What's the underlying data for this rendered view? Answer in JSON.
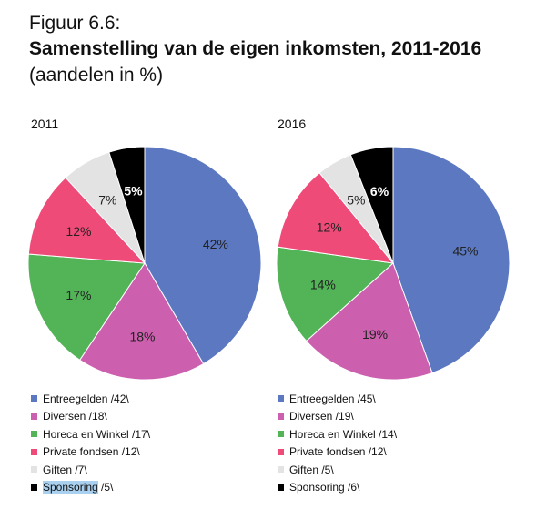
{
  "figure_label": "Figuur 6.6:",
  "title": "Samenstelling van de eigen inkomsten, 2011-2016",
  "subtitle": "(aandelen in %)",
  "colors": {
    "Entreegelden": "#5b78c0",
    "Diversen": "#cc5fae",
    "Horeca en Winkel": "#52b457",
    "Private fondsen": "#ee4b78",
    "Giften": "#e3e3e3",
    "Sponsoring": "#000000"
  },
  "chart_data": [
    {
      "type": "pie",
      "title": "2011",
      "unit": "%",
      "slices": [
        {
          "label": "Entreegelden",
          "value": 42,
          "legend": "Entreegelden /42\\"
        },
        {
          "label": "Diversen",
          "value": 18,
          "legend": "Diversen /18\\"
        },
        {
          "label": "Horeca en Winkel",
          "value": 17,
          "legend": "Horeca en Winkel /17\\"
        },
        {
          "label": "Private fondsen",
          "value": 12,
          "legend": "Private fondsen /12\\"
        },
        {
          "label": "Giften",
          "value": 7,
          "legend": "Giften /7\\"
        },
        {
          "label": "Sponsoring",
          "value": 5,
          "legend": "Sponsoring /5\\",
          "highlight": "Sponsoring",
          "rest": " /5\\"
        }
      ]
    },
    {
      "type": "pie",
      "title": "2016",
      "unit": "%",
      "slices": [
        {
          "label": "Entreegelden",
          "value": 45,
          "legend": "Entreegelden /45\\"
        },
        {
          "label": "Diversen",
          "value": 19,
          "legend": "Diversen /19\\"
        },
        {
          "label": "Horeca en Winkel",
          "value": 14,
          "legend": "Horeca en Winkel /14\\"
        },
        {
          "label": "Private fondsen",
          "value": 12,
          "legend": "Private fondsen /12\\"
        },
        {
          "label": "Giften",
          "value": 5,
          "legend": "Giften /5\\"
        },
        {
          "label": "Sponsoring",
          "value": 6,
          "legend": "Sponsoring /6\\"
        }
      ]
    }
  ]
}
